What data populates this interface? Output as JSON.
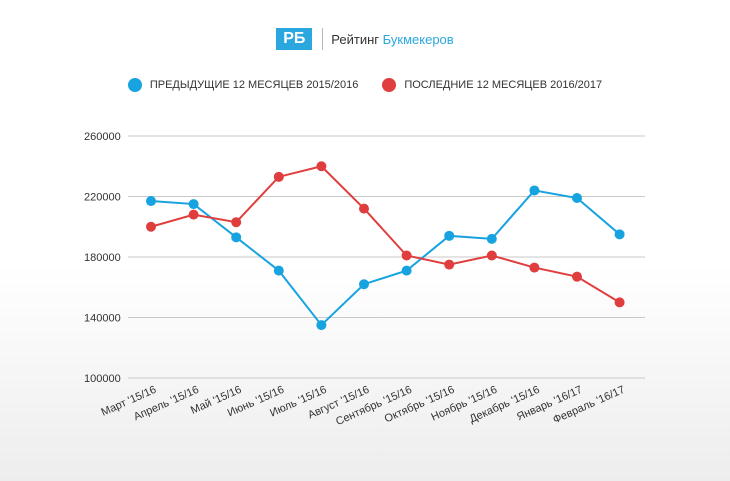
{
  "header": {
    "logo_mark": "РБ",
    "brand_word1": "Рейтинг",
    "brand_word2": "Букмекеров"
  },
  "colors": {
    "series1": "#17a3e0",
    "series2": "#e03e3e",
    "grid": "#c9c9c9"
  },
  "chart_data": {
    "type": "line",
    "title": "",
    "xlabel": "",
    "ylabel": "",
    "categories": [
      "Март '15/16",
      "Апрель '15/16",
      "Май '15/16",
      "Июнь '15/16",
      "Июль '15/16",
      "Август '15/16",
      "Сентябрь '15/16",
      "Октябрь '15/16",
      "Ноябрь '15/16",
      "Декабрь '15/16",
      "Январь '16/17",
      "Февраль '16/17"
    ],
    "ylim": [
      100000,
      260000
    ],
    "yticks": [
      "260000",
      "220000",
      "180000",
      "140000",
      "100000"
    ],
    "legend": "top-center",
    "grid": true,
    "series": [
      {
        "name": "ПРЕДЫДУЩИЕ 12 МЕСЯЦЕВ 2015/2016",
        "values": [
          217000,
          215000,
          193000,
          171000,
          135000,
          162000,
          171000,
          194000,
          192000,
          224000,
          219000,
          195000
        ]
      },
      {
        "name": "ПОСЛЕДНИЕ 12 МЕСЯЦЕВ 2016/2017",
        "values": [
          200000,
          208000,
          203000,
          233000,
          240000,
          212000,
          181000,
          175000,
          181000,
          173000,
          167000,
          150000
        ]
      }
    ]
  }
}
